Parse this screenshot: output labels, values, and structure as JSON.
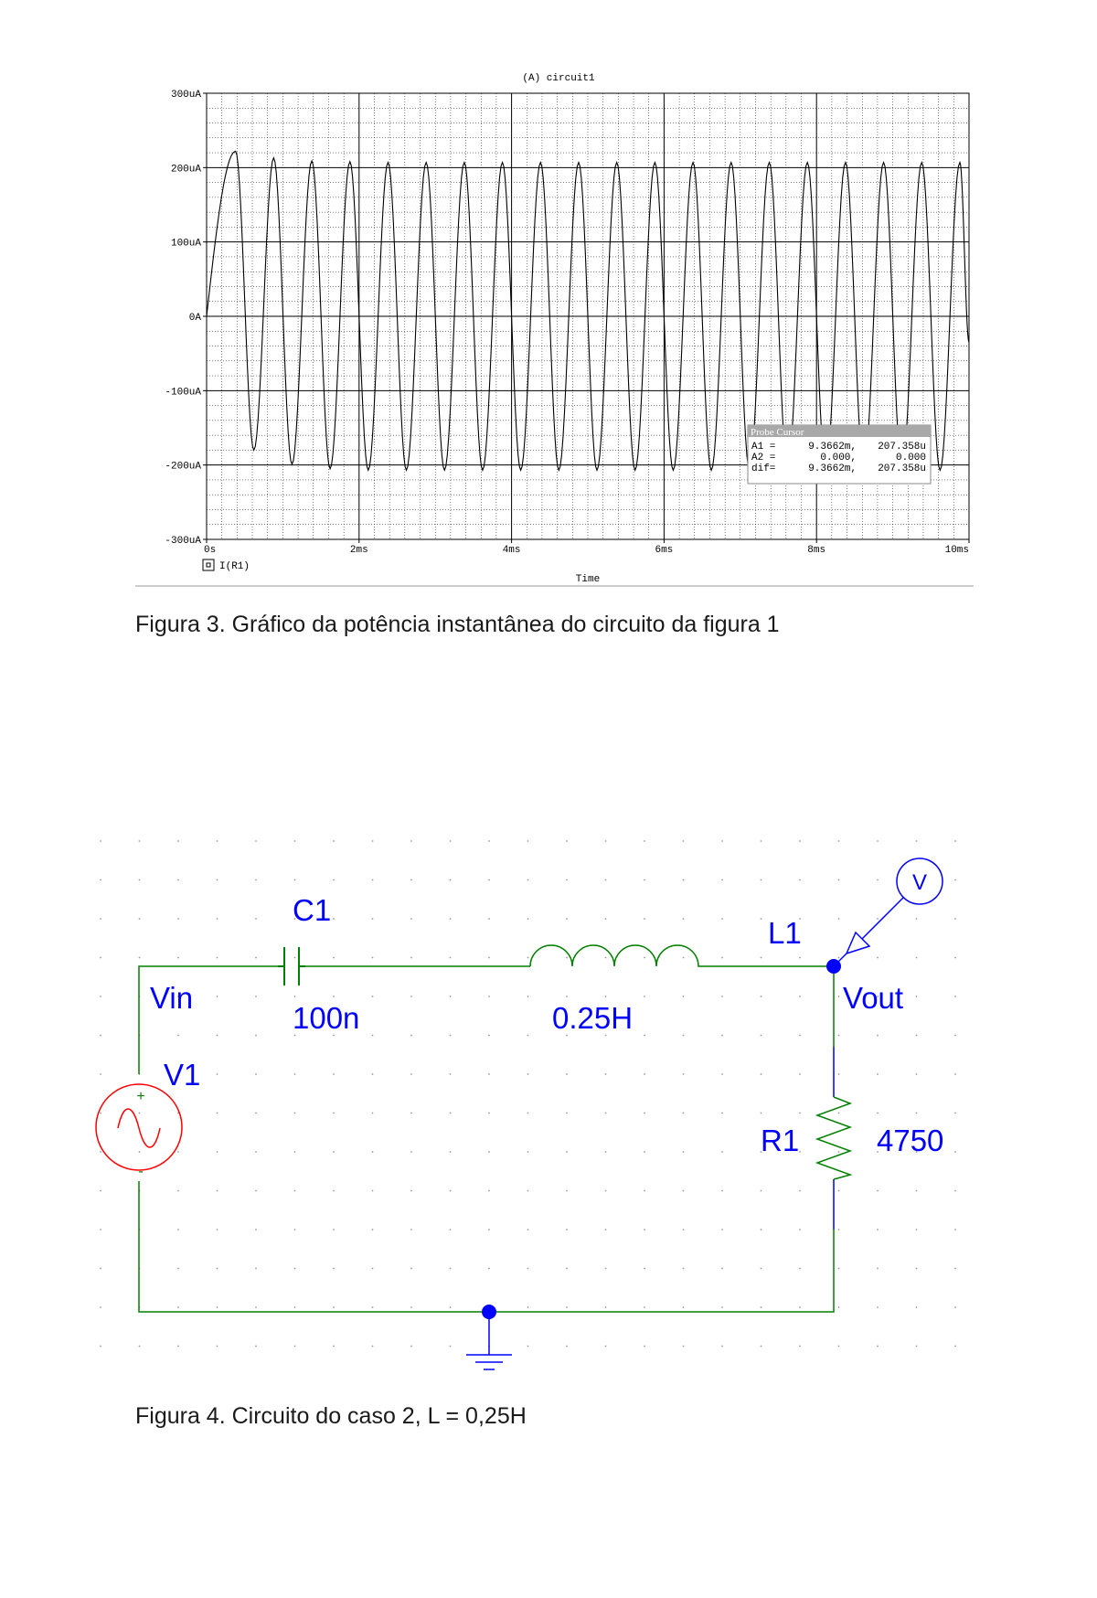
{
  "figure3": {
    "caption": "Figura 3. Gráfico da potência instantânea do circuito da figura 1",
    "chart_data": {
      "type": "line",
      "title": "(A) circuit1",
      "xlabel": "Time",
      "trace_label": "I(R1)",
      "x_ticks": [
        "0s",
        "2ms",
        "4ms",
        "6ms",
        "8ms",
        "10ms"
      ],
      "y_ticks": [
        "300uA",
        "200uA",
        "100uA",
        "0A",
        "-100uA",
        "-200uA",
        "-300uA"
      ],
      "xlim": [
        0,
        10
      ],
      "x_unit": "ms",
      "ylim": [
        -300,
        300
      ],
      "y_unit": "uA",
      "grid": true,
      "series": [
        {
          "name": "I(R1)",
          "color": "#000000",
          "peaks": [
            {
              "t": 0.38,
              "i": 222
            },
            {
              "t": 0.62,
              "i": -180
            },
            {
              "t": 0.88,
              "i": 213
            },
            {
              "t": 1.12,
              "i": -199
            },
            {
              "t": 1.38,
              "i": 209
            },
            {
              "t": 1.62,
              "i": -205
            },
            {
              "t": 1.88,
              "i": 208
            },
            {
              "t": 2.12,
              "i": -207
            },
            {
              "t": 2.38,
              "i": 207
            },
            {
              "t": 2.62,
              "i": -207
            },
            {
              "t": 2.88,
              "i": 207
            },
            {
              "t": 3.12,
              "i": -207
            },
            {
              "t": 3.38,
              "i": 207
            },
            {
              "t": 3.62,
              "i": -207
            },
            {
              "t": 3.88,
              "i": 207
            },
            {
              "t": 4.12,
              "i": -207
            },
            {
              "t": 4.38,
              "i": 207
            },
            {
              "t": 4.62,
              "i": -207
            },
            {
              "t": 4.88,
              "i": 207
            },
            {
              "t": 5.12,
              "i": -207
            },
            {
              "t": 5.38,
              "i": 207
            },
            {
              "t": 5.62,
              "i": -207
            },
            {
              "t": 5.88,
              "i": 207
            },
            {
              "t": 6.12,
              "i": -207
            },
            {
              "t": 6.38,
              "i": 207
            },
            {
              "t": 6.62,
              "i": -207
            },
            {
              "t": 6.88,
              "i": 207
            },
            {
              "t": 7.12,
              "i": -207
            },
            {
              "t": 7.38,
              "i": 207
            },
            {
              "t": 7.62,
              "i": -207
            },
            {
              "t": 7.88,
              "i": 207
            },
            {
              "t": 8.12,
              "i": -207
            },
            {
              "t": 8.38,
              "i": 207
            },
            {
              "t": 8.62,
              "i": -207
            },
            {
              "t": 8.88,
              "i": 207
            },
            {
              "t": 9.12,
              "i": -207
            },
            {
              "t": 9.38,
              "i": 207
            },
            {
              "t": 9.62,
              "i": -207
            },
            {
              "t": 9.88,
              "i": 207
            },
            {
              "t": 10.0,
              "i": -35
            }
          ]
        }
      ],
      "probe_cursor": {
        "title": "Probe Cursor",
        "rows": [
          {
            "label": "A1 =",
            "x": "9.3662m,",
            "y": "207.358u"
          },
          {
            "label": "A2 =",
            "x": "0.000,",
            "y": "0.000"
          },
          {
            "label": "dif=",
            "x": "9.3662m,",
            "y": "207.358u"
          }
        ]
      }
    }
  },
  "figure4": {
    "caption": "Figura 4. Circuito do caso 2, L = 0,25H",
    "labels": {
      "c1_name": "C1",
      "c1_value": "100n",
      "l1_name": "L1",
      "l1_value": "0.25H",
      "vin": "Vin",
      "vout": "Vout",
      "v1_name": "V1",
      "r1_name": "R1",
      "r1_value": "4750",
      "probe": "V",
      "plus": "+",
      "minus": "-"
    },
    "colors": {
      "wire": "#008000",
      "pin": "#0000ff",
      "source": "#ff0000",
      "label": "#0000ff"
    }
  }
}
